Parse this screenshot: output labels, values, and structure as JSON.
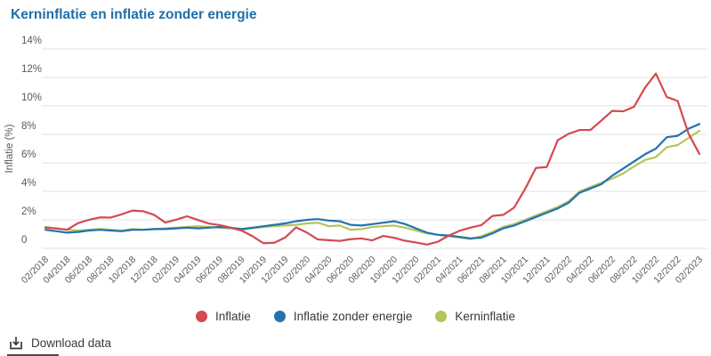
{
  "header": {
    "title": "Kerninflatie en inflatie zonder energie",
    "title_color": "#1e6fa9"
  },
  "chart_data": {
    "type": "line",
    "title": "Kerninflatie en inflatie zonder energie",
    "xlabel": "",
    "ylabel": "Inflatie (%)",
    "ylim": [
      0,
      14
    ],
    "yticks": [
      0,
      2,
      4,
      6,
      8,
      10,
      12,
      14
    ],
    "ytick_labels": [
      "0",
      "2%",
      "4%",
      "6%",
      "8%",
      "10%",
      "12%",
      "14%"
    ],
    "grid": true,
    "legend_position": "bottom-center",
    "tick_every": 2,
    "x": [
      "02/2018",
      "03/2018",
      "04/2018",
      "05/2018",
      "06/2018",
      "07/2018",
      "08/2018",
      "09/2018",
      "10/2018",
      "11/2018",
      "12/2018",
      "01/2019",
      "02/2019",
      "03/2019",
      "04/2019",
      "05/2019",
      "06/2019",
      "07/2019",
      "08/2019",
      "09/2019",
      "10/2019",
      "11/2019",
      "12/2019",
      "01/2020",
      "02/2020",
      "03/2020",
      "04/2020",
      "05/2020",
      "06/2020",
      "07/2020",
      "08/2020",
      "09/2020",
      "10/2020",
      "11/2020",
      "12/2020",
      "01/2021",
      "02/2021",
      "03/2021",
      "04/2021",
      "05/2021",
      "06/2021",
      "07/2021",
      "08/2021",
      "09/2021",
      "10/2021",
      "11/2021",
      "12/2021",
      "01/2022",
      "02/2022",
      "03/2022",
      "04/2022",
      "05/2022",
      "06/2022",
      "07/2022",
      "08/2022",
      "09/2022",
      "10/2022",
      "11/2022",
      "12/2022",
      "01/2023",
      "02/2023"
    ],
    "series": [
      {
        "name": "Inflatie",
        "color": "#d5494f",
        "values": [
          1.45,
          1.39,
          1.31,
          1.77,
          2.0,
          2.17,
          2.16,
          2.39,
          2.65,
          2.6,
          2.34,
          1.81,
          2.01,
          2.25,
          1.99,
          1.74,
          1.63,
          1.45,
          1.25,
          0.85,
          0.36,
          0.39,
          0.76,
          1.47,
          1.1,
          0.62,
          0.57,
          0.52,
          0.64,
          0.69,
          0.56,
          0.87,
          0.74,
          0.53,
          0.41,
          0.26,
          0.46,
          0.89,
          1.23,
          1.46,
          1.63,
          2.27,
          2.35,
          2.86,
          4.16,
          5.64,
          5.71,
          7.59,
          8.04,
          8.31,
          8.31,
          8.97,
          9.65,
          9.62,
          9.94,
          11.27,
          12.27,
          10.63,
          10.35,
          8.05,
          6.62
        ]
      },
      {
        "name": "Inflatie zonder energie",
        "color": "#2273af",
        "values": [
          1.3,
          1.2,
          1.1,
          1.15,
          1.25,
          1.3,
          1.25,
          1.2,
          1.3,
          1.3,
          1.35,
          1.35,
          1.4,
          1.45,
          1.4,
          1.45,
          1.5,
          1.45,
          1.35,
          1.45,
          1.55,
          1.65,
          1.75,
          1.9,
          2.0,
          2.05,
          1.95,
          1.9,
          1.65,
          1.6,
          1.7,
          1.8,
          1.9,
          1.7,
          1.4,
          1.1,
          0.95,
          0.9,
          0.8,
          0.7,
          0.75,
          1.05,
          1.4,
          1.6,
          1.9,
          2.2,
          2.5,
          2.8,
          3.2,
          3.9,
          4.2,
          4.5,
          5.1,
          5.6,
          6.1,
          6.6,
          7.0,
          7.8,
          7.9,
          8.4,
          8.73
        ]
      },
      {
        "name": "Kerninflatie",
        "color": "#b7c35c",
        "values": [
          1.5,
          1.4,
          1.3,
          1.25,
          1.3,
          1.35,
          1.3,
          1.25,
          1.35,
          1.3,
          1.35,
          1.4,
          1.45,
          1.5,
          1.55,
          1.5,
          1.45,
          1.4,
          1.3,
          1.4,
          1.5,
          1.55,
          1.6,
          1.65,
          1.75,
          1.8,
          1.55,
          1.6,
          1.3,
          1.35,
          1.5,
          1.55,
          1.6,
          1.45,
          1.25,
          1.05,
          0.95,
          0.85,
          0.75,
          0.65,
          0.85,
          1.15,
          1.5,
          1.7,
          2.0,
          2.3,
          2.6,
          2.9,
          3.3,
          4.0,
          4.3,
          4.6,
          4.9,
          5.25,
          5.75,
          6.2,
          6.4,
          7.1,
          7.25,
          7.75,
          8.25
        ]
      }
    ],
    "style": {
      "grid_color": "#e2e2e2",
      "axis_text_color": "#5a5a5a",
      "line_width": 2.2
    }
  },
  "footer": {
    "download_label": "Download data"
  }
}
